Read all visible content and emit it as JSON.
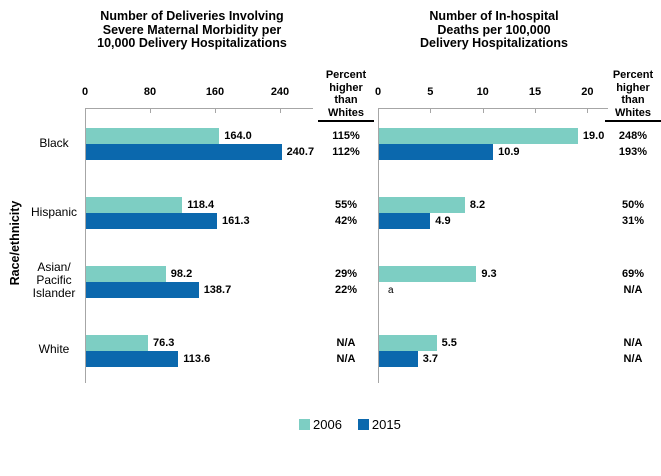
{
  "colors": {
    "series_2006": "#7DCEC3",
    "series_2015": "#0B68AD",
    "axis": "#A6A6A6",
    "text": "#000000"
  },
  "y_axis_label": "Race/ethnicity",
  "percent_header": "Percent higher than Whites",
  "footnote_marker": "a",
  "legend": {
    "items": [
      {
        "label": "2006",
        "color": "#7DCEC3"
      },
      {
        "label": "2015",
        "color": "#0B68AD"
      }
    ]
  },
  "chart_data": [
    {
      "type": "bar",
      "orientation": "horizontal",
      "title": "Number of Deliveries Involving Severe Maternal Morbidity per 10,000 Delivery Hospitalizations",
      "title_lines": [
        "Number of Deliveries Involving",
        "Severe Maternal Morbidity per",
        "10,000 Delivery Hospitalizations"
      ],
      "categories": [
        "Black",
        "Hispanic",
        "Asian/Pacific Islander",
        "White"
      ],
      "category_lines": [
        [
          "Black"
        ],
        [
          "Hispanic"
        ],
        [
          "Asian/",
          "Pacific",
          "Islander"
        ],
        [
          "White"
        ]
      ],
      "xlim": [
        0,
        280
      ],
      "ticks": [
        0,
        80,
        160,
        240
      ],
      "grid": false,
      "series": [
        {
          "name": "2006",
          "values": [
            164.0,
            118.4,
            98.2,
            76.3
          ],
          "labels": [
            "164.0",
            "118.4",
            "98.2",
            "76.3"
          ]
        },
        {
          "name": "2015",
          "values": [
            240.7,
            161.3,
            138.7,
            113.6
          ],
          "labels": [
            "240.7",
            "161.3",
            "138.7",
            "113.6"
          ]
        }
      ],
      "percent_higher_than_whites": {
        "2006": [
          "115%",
          "55%",
          "29%",
          "N/A"
        ],
        "2015": [
          "112%",
          "42%",
          "22%",
          "N/A"
        ]
      }
    },
    {
      "type": "bar",
      "orientation": "horizontal",
      "title": "Number of In-hospital Deaths per 100,000 Delivery Hospitalizations",
      "title_lines": [
        "Number of In-hospital",
        "Deaths per 100,000",
        "Delivery Hospitalizations"
      ],
      "categories": [
        "Black",
        "Hispanic",
        "Asian/Pacific Islander",
        "White"
      ],
      "xlim": [
        0,
        22
      ],
      "ticks": [
        0,
        5,
        10,
        15,
        20
      ],
      "grid": false,
      "series": [
        {
          "name": "2006",
          "values": [
            19.0,
            8.2,
            9.3,
            5.5
          ],
          "labels": [
            "19.0",
            "8.2",
            "9.3",
            "5.5"
          ]
        },
        {
          "name": "2015",
          "values": [
            10.9,
            4.9,
            null,
            3.7
          ],
          "labels": [
            "10.9",
            "4.9",
            "a",
            "3.7"
          ]
        }
      ],
      "percent_higher_than_whites": {
        "2006": [
          "248%",
          "50%",
          "69%",
          "N/A"
        ],
        "2015": [
          "193%",
          "31%",
          "N/A",
          "N/A"
        ]
      }
    }
  ]
}
